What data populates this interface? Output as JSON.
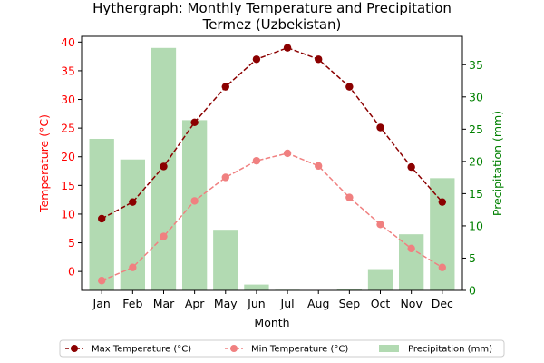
{
  "chart_data": {
    "type": "bar",
    "title": "Hythergraph: Monthly Temperature and Precipitation",
    "subtitle": "Termez (Uzbekistan)",
    "xlabel": "Month",
    "ylabel_left": "Temperature (°C)",
    "ylabel_right": "Precipitation (mm)",
    "categories": [
      "Jan",
      "Feb",
      "Mar",
      "Apr",
      "May",
      "Jun",
      "Jul",
      "Aug",
      "Sep",
      "Oct",
      "Nov",
      "Dec"
    ],
    "y_left_lim": [
      -3.3,
      41.0
    ],
    "y_left_ticks": [
      0,
      5,
      10,
      15,
      20,
      25,
      30,
      35,
      40
    ],
    "y_right_lim": [
      0,
      39.4
    ],
    "y_right_ticks": [
      0,
      5,
      10,
      15,
      20,
      25,
      30,
      35
    ],
    "grid": false,
    "legend_position": "bottom-center",
    "series": [
      {
        "name": "Max Temperature (°C)",
        "kind": "line",
        "axis": "left",
        "color": "#8b0000",
        "values": [
          9.2,
          12.1,
          18.3,
          26.0,
          32.2,
          37.0,
          39.0,
          37.0,
          32.2,
          25.1,
          18.2,
          12.1
        ]
      },
      {
        "name": "Min Temperature (°C)",
        "kind": "line",
        "axis": "left",
        "color": "#f08080",
        "values": [
          -1.6,
          0.7,
          6.1,
          12.3,
          16.4,
          19.3,
          20.6,
          18.4,
          12.9,
          8.2,
          4.0,
          0.7
        ]
      },
      {
        "name": "Precipitation (mm)",
        "kind": "bar",
        "axis": "right",
        "color": "#b2dab2",
        "values": [
          23.5,
          20.3,
          37.6,
          26.4,
          9.4,
          0.9,
          0.1,
          0.0,
          0.2,
          3.3,
          8.7,
          17.4
        ]
      }
    ]
  }
}
